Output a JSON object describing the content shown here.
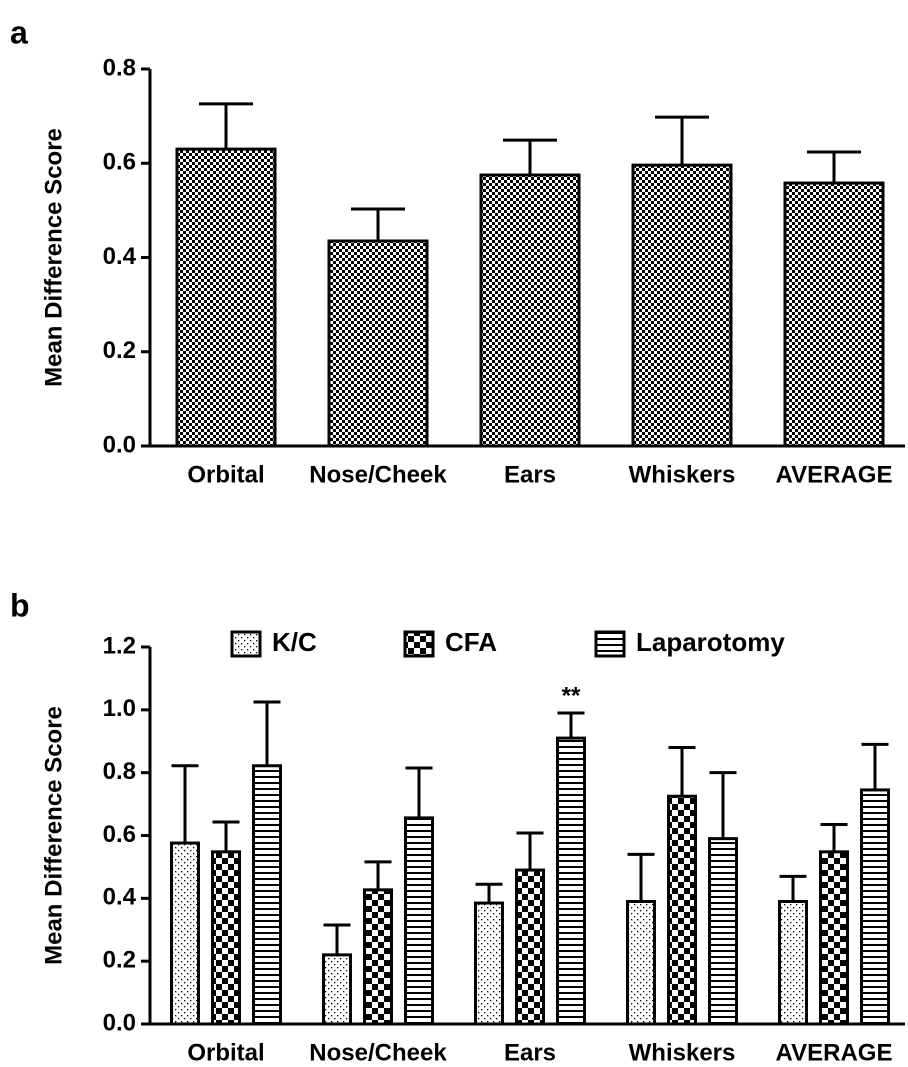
{
  "chart_data": [
    {
      "type": "bar",
      "panel_label": "a",
      "ylabel": "Mean Difference Score",
      "categories": [
        "Orbital",
        "Nose/Cheek",
        "Ears",
        "Whiskers",
        "AVERAGE"
      ],
      "series": [
        {
          "color": "#000000",
          "pattern": "checker",
          "values": [
            0.63,
            0.435,
            0.575,
            0.596,
            0.558
          ],
          "errors": [
            0.096,
            0.068,
            0.074,
            0.102,
            0.066
          ]
        }
      ],
      "ylim": [
        0,
        0.8
      ],
      "yticks": [
        {
          "value": 0,
          "label": "0.0"
        },
        0.2,
        0.4,
        0.6,
        0.8
      ]
    },
    {
      "type": "grouped_bar",
      "panel_label": "b",
      "ylabel": "Mean Difference Score",
      "categories": [
        "Orbital",
        "Nose/Cheek",
        "Ears",
        "Whiskers",
        "AVERAGE"
      ],
      "series": [
        {
          "name": "K/C",
          "color": "#000000",
          "pattern": "dots",
          "values": [
            0.576,
            0.22,
            0.385,
            0.39,
            0.39
          ],
          "errors": [
            0.246,
            0.095,
            0.06,
            0.15,
            0.08
          ]
        },
        {
          "name": "CFA",
          "color": "#000000",
          "pattern": "checker",
          "values": [
            0.548,
            0.427,
            0.49,
            0.725,
            0.548
          ],
          "errors": [
            0.095,
            0.089,
            0.118,
            0.155,
            0.087
          ]
        },
        {
          "name": "Laparotomy",
          "color": "#000000",
          "pattern": "stripes",
          "values": [
            0.822,
            0.656,
            0.91,
            0.59,
            0.745
          ],
          "errors": [
            0.203,
            0.159,
            0.08,
            0.21,
            0.145
          ],
          "annotations": [
            null,
            null,
            "**",
            null,
            null
          ]
        }
      ],
      "ylim": [
        0,
        1.2
      ],
      "yticks": [
        {
          "value": 0,
          "label": "0.0"
        },
        0.2,
        0.4,
        0.6,
        0.8,
        {
          "value": 1,
          "label": "1.0"
        },
        1.2
      ],
      "legend": "top"
    }
  ]
}
